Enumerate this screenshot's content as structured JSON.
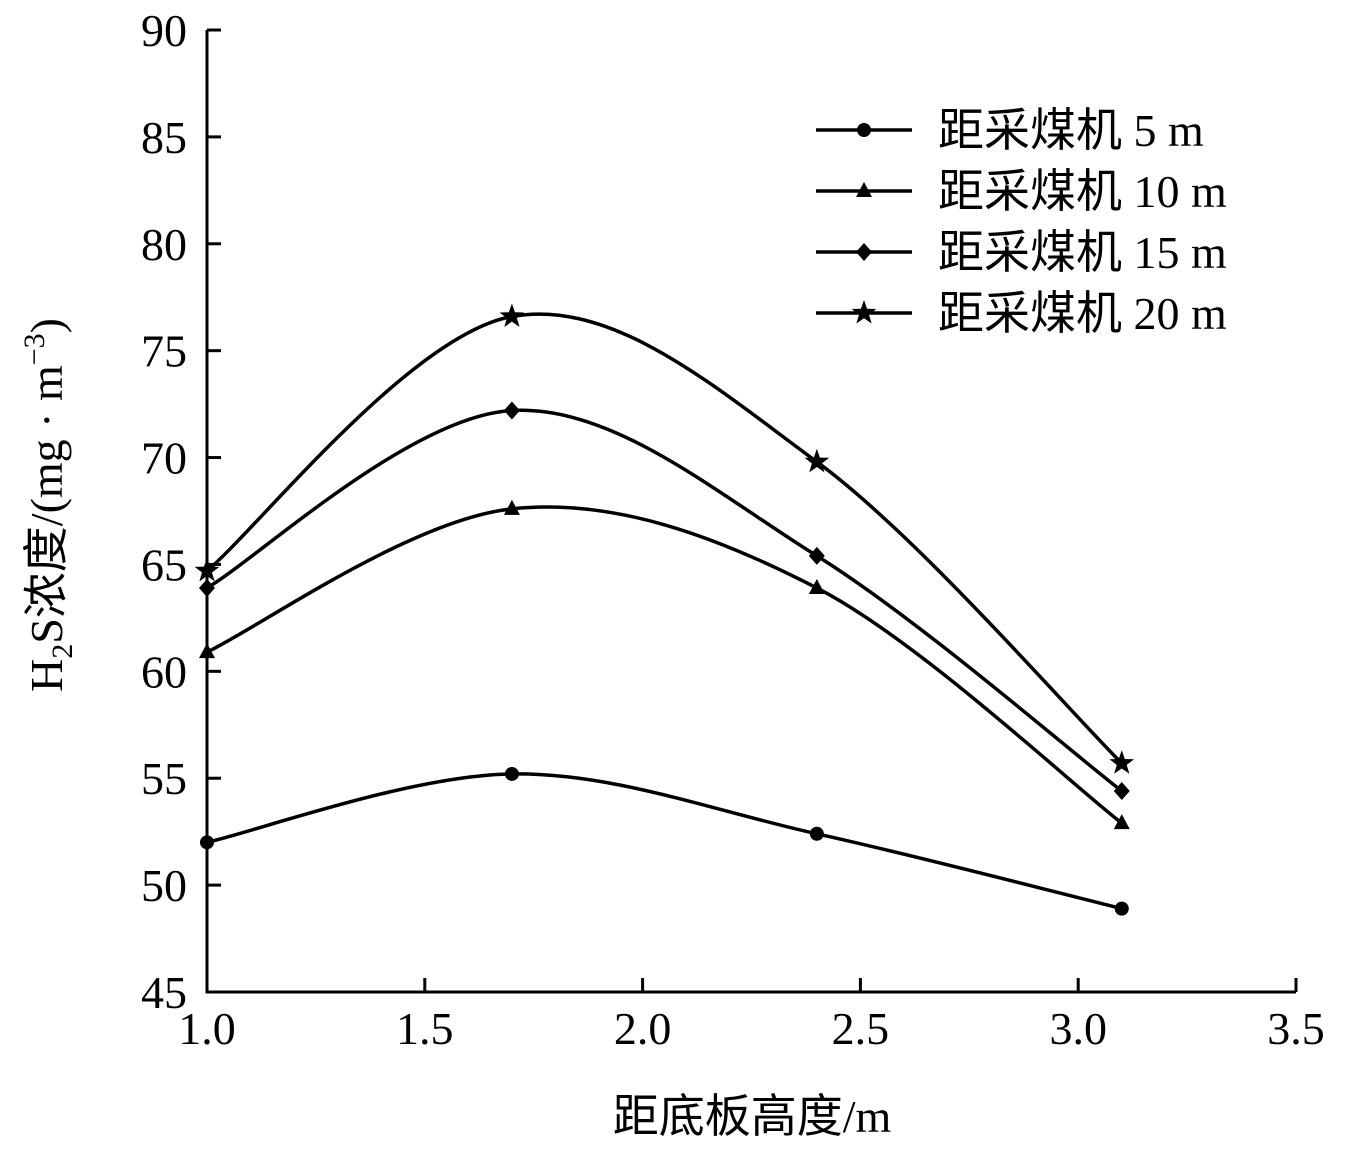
{
  "chart_data": {
    "type": "line",
    "xlabel": "距底板高度/m",
    "ylabel_main": "H",
    "ylabel_sub": "2",
    "ylabel_rest": "S浓度/(mg · m",
    "ylabel_sup": "−3",
    "ylabel_close": ")",
    "xlim": [
      1.0,
      3.5
    ],
    "ylim": [
      45,
      90
    ],
    "xticks": [
      "1.0",
      "1.5",
      "2.0",
      "2.5",
      "3.0",
      "3.5"
    ],
    "yticks": [
      "45",
      "50",
      "55",
      "60",
      "65",
      "70",
      "75",
      "80",
      "85",
      "90"
    ],
    "legend_position": "top-right",
    "grid": false,
    "x": [
      1.0,
      1.7,
      2.4,
      3.1
    ],
    "series": [
      {
        "name": "距采煤机 5 m",
        "marker": "circle",
        "values": [
          52.0,
          55.2,
          52.4,
          48.9
        ]
      },
      {
        "name": "距采煤机 10 m",
        "marker": "triangle",
        "values": [
          60.9,
          67.6,
          63.9,
          52.9
        ]
      },
      {
        "name": "距采煤机 15 m",
        "marker": "diamond",
        "values": [
          63.9,
          72.2,
          65.4,
          54.4
        ]
      },
      {
        "name": "距采煤机 20 m",
        "marker": "star",
        "values": [
          64.7,
          76.6,
          69.8,
          55.7
        ]
      }
    ]
  }
}
